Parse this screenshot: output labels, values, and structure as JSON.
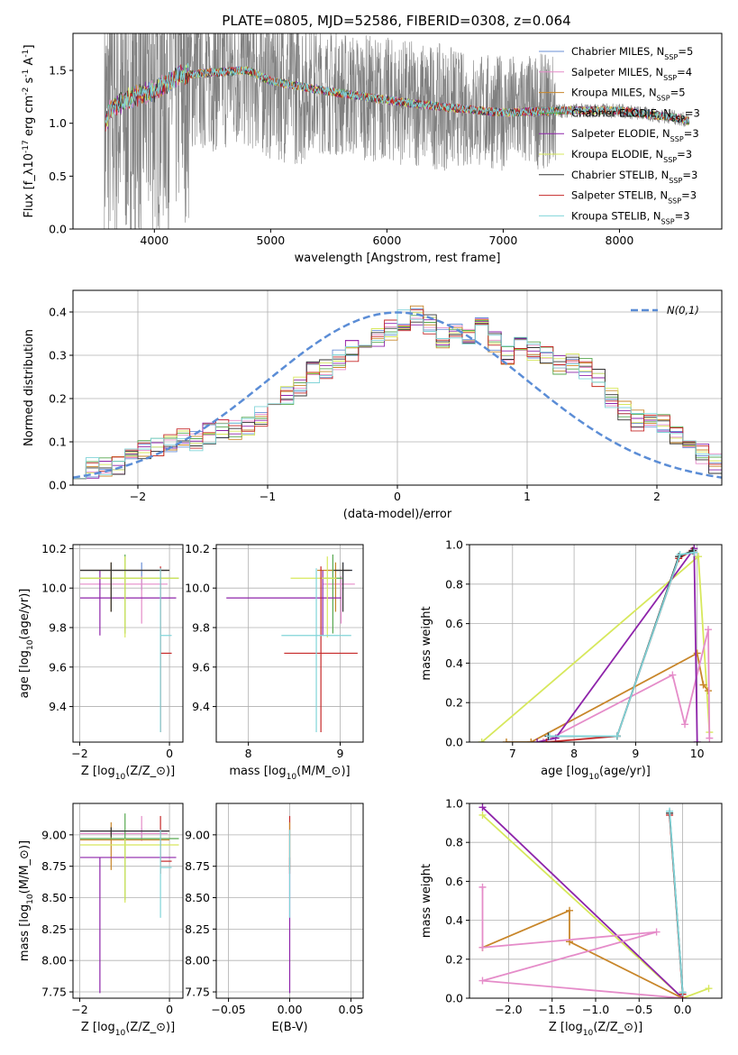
{
  "chart_data": [
    {
      "id": "spectrum",
      "type": "line",
      "title": "PLATE=0805, MJD=52586, FIBERID=0308, z=0.064",
      "xlabel": "wavelength [Angstrom, rest frame]",
      "ylabel": "Flux [f$_\\lambda$10$^{-17}$ erg cm$^{-2}$ s$^{-1}$ A$^{-1}$]",
      "xlim": [
        3300,
        8880
      ],
      "ylim": [
        0,
        1.85
      ],
      "xticks": [
        "4000",
        "5000",
        "6000",
        "7000",
        "8000"
      ],
      "xtick_values": [
        4000,
        5000,
        6000,
        7000,
        8000
      ],
      "yticks": [
        "0.0",
        "0.5",
        "1.0",
        "1.5"
      ],
      "ytick_values": [
        0,
        0.5,
        1.0,
        1.5
      ],
      "data_x_range": [
        3570,
        8600
      ],
      "data_color": "#808080",
      "continuum": [
        [
          3600,
          1.12
        ],
        [
          3800,
          1.25
        ],
        [
          4000,
          1.3
        ],
        [
          4200,
          1.45
        ],
        [
          4500,
          1.48
        ],
        [
          4800,
          1.5
        ],
        [
          5000,
          1.4
        ],
        [
          5500,
          1.3
        ],
        [
          6000,
          1.22
        ],
        [
          6500,
          1.15
        ],
        [
          7000,
          1.1
        ],
        [
          7500,
          1.12
        ],
        [
          8000,
          1.12
        ],
        [
          8500,
          1.05
        ],
        [
          8600,
          1.02
        ]
      ],
      "legend_position": "upper right",
      "series": [
        {
          "name": "Chabrier MILES, N$_{SSP}$=5",
          "color": "#6a8fd6"
        },
        {
          "name": "Salpeter MILES, N$_{SSP}$=4",
          "color": "#e58cc9"
        },
        {
          "name": "Kroupa MILES, N$_{SSP}$=5",
          "color": "#c8862a"
        },
        {
          "name": "Chabrier ELODIE, N$_{SSP}$=3",
          "color": "#56a84f"
        },
        {
          "name": "Salpeter ELODIE, N$_{SSP}$=3",
          "color": "#8e24aa"
        },
        {
          "name": "Kroupa ELODIE, N$_{SSP}$=3",
          "color": "#d7e85c"
        },
        {
          "name": "Chabrier STELIB, N$_{SSP}$=3",
          "color": "#333333"
        },
        {
          "name": "Salpeter STELIB, N$_{SSP}$=3",
          "color": "#c62828"
        },
        {
          "name": "Kroupa STELIB, N$_{SSP}$=3",
          "color": "#80d4d8"
        }
      ]
    },
    {
      "id": "residuals",
      "type": "line",
      "xlabel": "(data-model)/error",
      "ylabel": "Normed distribution",
      "xlim": [
        -2.5,
        2.5
      ],
      "ylim": [
        0,
        0.45
      ],
      "xticks": [
        "−2",
        "−1",
        "0",
        "1",
        "2"
      ],
      "xtick_values": [
        -2,
        -1,
        0,
        1,
        2
      ],
      "yticks": [
        "0.0",
        "0.1",
        "0.2",
        "0.3",
        "0.4"
      ],
      "ytick_values": [
        0,
        0.1,
        0.2,
        0.3,
        0.4
      ],
      "grid": true,
      "bin_edges_range": [
        -2.5,
        2.5
      ],
      "bin_count": 50,
      "histogram_base": [
        0.04,
        0.04,
        0.04,
        0.05,
        0.06,
        0.08,
        0.09,
        0.1,
        0.11,
        0.1,
        0.12,
        0.13,
        0.13,
        0.14,
        0.16,
        0.19,
        0.21,
        0.23,
        0.26,
        0.27,
        0.29,
        0.31,
        0.33,
        0.34,
        0.36,
        0.38,
        0.39,
        0.37,
        0.34,
        0.36,
        0.35,
        0.38,
        0.33,
        0.3,
        0.32,
        0.31,
        0.3,
        0.28,
        0.28,
        0.27,
        0.25,
        0.2,
        0.17,
        0.15,
        0.15,
        0.14,
        0.12,
        0.09,
        0.07,
        0.05
      ],
      "reference_curve": {
        "name": "$\\mathcal{N}(0,1)$",
        "color": "#5b8dd6",
        "dashed": true
      },
      "legend_position": "upper right",
      "series_colors": [
        "#6a8fd6",
        "#e58cc9",
        "#c8862a",
        "#56a84f",
        "#8e24aa",
        "#d7e85c",
        "#333333",
        "#c62828",
        "#80d4d8"
      ]
    },
    {
      "id": "z_age",
      "type": "scatter",
      "xlabel": "Z [log$_{10}$($Z/Z_\\odot$)]",
      "ylabel": "age  [log$_{10}$($age/yr$)]",
      "xlim": [
        -2.15,
        0.3
      ],
      "ylim": [
        9.22,
        10.22
      ],
      "xticks": [
        "−2",
        "0"
      ],
      "xtick_values": [
        -2,
        0
      ],
      "yticks": [
        "9.4",
        "9.6",
        "9.8",
        "10.0",
        "10.2"
      ],
      "ytick_values": [
        9.4,
        9.6,
        9.8,
        10.0,
        10.2
      ],
      "grid": true,
      "points": [
        {
          "color": "#6a8fd6",
          "x": -0.62,
          "xerr": [
            1.37,
            0.58
          ],
          "y": 10.09,
          "yerr": [
            0.1,
            0.04
          ]
        },
        {
          "color": "#e58cc9",
          "x": -0.62,
          "xerr": [
            1.37,
            0.58
          ],
          "y": 10.02,
          "yerr": [
            0.2,
            0.04
          ]
        },
        {
          "color": "#c8862a",
          "x": -1.3,
          "xerr": [
            0.69,
            1.3
          ],
          "y": 10.09,
          "yerr": [
            0.21,
            0.04
          ]
        },
        {
          "color": "#56a84f",
          "x": -0.99,
          "xerr": [
            1.0,
            1.2
          ],
          "y": 10.05,
          "yerr": [
            0.28,
            0.12
          ]
        },
        {
          "color": "#8e24aa",
          "x": -1.55,
          "xerr": [
            0.44,
            1.7
          ],
          "y": 9.95,
          "yerr": [
            0.19,
            0.14
          ]
        },
        {
          "color": "#d7e85c",
          "x": -0.99,
          "xerr": [
            1.0,
            1.2
          ],
          "y": 10.05,
          "yerr": [
            0.3,
            0.11
          ]
        },
        {
          "color": "#333333",
          "x": -1.3,
          "xerr": [
            0.69,
            1.3
          ],
          "y": 10.09,
          "yerr": [
            0.21,
            0.04
          ]
        },
        {
          "color": "#c62828",
          "x": -0.2,
          "xerr": [
            0.0,
            0.25
          ],
          "y": 9.67,
          "yerr": [
            0.4,
            0.44
          ]
        },
        {
          "color": "#80d4d8",
          "x": -0.2,
          "xerr": [
            0.0,
            0.25
          ],
          "y": 9.76,
          "yerr": [
            0.49,
            0.34
          ]
        }
      ]
    },
    {
      "id": "mass_age",
      "type": "scatter",
      "xlabel": "mass [log$_{10}$($M/M_\\odot$)]",
      "ylabel": "",
      "xlim": [
        7.65,
        9.25
      ],
      "ylim": [
        9.22,
        10.22
      ],
      "xticks": [
        "8",
        "9"
      ],
      "xtick_values": [
        8,
        9
      ],
      "yticks": [
        "9.4",
        "9.6",
        "9.8",
        "10.0",
        "10.2"
      ],
      "ytick_values": [
        9.4,
        9.6,
        9.8,
        10.0,
        10.2
      ],
      "grid": true,
      "points": [
        {
          "color": "#6a8fd6",
          "x": 9.03,
          "xerr": [
            0.18,
            0.1
          ],
          "y": 10.09,
          "yerr": [
            0.1,
            0.04
          ]
        },
        {
          "color": "#e58cc9",
          "x": 9.01,
          "xerr": [
            0.2,
            0.15
          ],
          "y": 10.02,
          "yerr": [
            0.2,
            0.04
          ]
        },
        {
          "color": "#c8862a",
          "x": 8.95,
          "xerr": [
            0.2,
            0.15
          ],
          "y": 10.09,
          "yerr": [
            0.21,
            0.04
          ]
        },
        {
          "color": "#56a84f",
          "x": 8.92,
          "xerr": [
            0.1,
            0.1
          ],
          "y": 10.05,
          "yerr": [
            0.28,
            0.12
          ]
        },
        {
          "color": "#8e24aa",
          "x": 8.81,
          "xerr": [
            1.05,
            0.2
          ],
          "y": 9.95,
          "yerr": [
            0.19,
            0.14
          ]
        },
        {
          "color": "#d7e85c",
          "x": 8.86,
          "xerr": [
            0.4,
            0.1
          ],
          "y": 10.05,
          "yerr": [
            0.3,
            0.11
          ]
        },
        {
          "color": "#333333",
          "x": 9.03,
          "xerr": [
            0.1,
            0.1
          ],
          "y": 10.09,
          "yerr": [
            0.21,
            0.04
          ]
        },
        {
          "color": "#c62828",
          "x": 8.79,
          "xerr": [
            0.4,
            0.4
          ],
          "y": 9.67,
          "yerr": [
            0.4,
            0.44
          ]
        },
        {
          "color": "#80d4d8",
          "x": 8.74,
          "xerr": [
            0.38,
            0.38
          ],
          "y": 9.76,
          "yerr": [
            0.49,
            0.34
          ]
        }
      ]
    },
    {
      "id": "age_weight",
      "type": "line",
      "xlabel": "age  [log$_{10}$($age/yr$)]",
      "ylabel": "mass weight",
      "xlim": [
        6.3,
        10.4
      ],
      "ylim": [
        0,
        1.0
      ],
      "xticks": [
        "7",
        "8",
        "9",
        "10"
      ],
      "xtick_values": [
        7,
        8,
        9,
        10
      ],
      "yticks": [
        "0.0",
        "0.2",
        "0.4",
        "0.6",
        "0.8",
        "1.0"
      ],
      "ytick_values": [
        0,
        0.2,
        0.4,
        0.6,
        0.8,
        1.0
      ],
      "grid": true,
      "series": [
        {
          "color": "#d7e85c",
          "x": [
            6.5,
            10.02,
            10.2
          ],
          "y": [
            0.0,
            0.94,
            0.05
          ]
        },
        {
          "color": "#c8862a",
          "x": [
            6.9,
            7.3,
            10.0,
            10.1,
            10.18
          ],
          "y": [
            0.0,
            0.0,
            0.45,
            0.29,
            0.26
          ]
        },
        {
          "color": "#e58cc9",
          "x": [
            7.5,
            9.6,
            9.8,
            10.18,
            10.2
          ],
          "y": [
            0.0,
            0.34,
            0.09,
            0.57,
            0.02
          ]
        },
        {
          "color": "#8e24aa",
          "x": [
            7.4,
            7.7,
            9.95,
            10.0
          ],
          "y": [
            0.0,
            0.02,
            0.98,
            0.0
          ]
        },
        {
          "color": "#c62828",
          "x": [
            7.55,
            8.7,
            9.7,
            9.92
          ],
          "y": [
            0.0,
            0.03,
            0.93,
            0.97
          ]
        },
        {
          "color": "#333333",
          "x": [
            7.58,
            8.7,
            9.7,
            9.93
          ],
          "y": [
            0.03,
            0.03,
            0.94,
            0.97
          ]
        },
        {
          "color": "#80d4d8",
          "x": [
            7.6,
            8.7,
            9.72,
            9.95
          ],
          "y": [
            0.03,
            0.03,
            0.95,
            0.96
          ]
        }
      ]
    },
    {
      "id": "z_mass",
      "type": "scatter",
      "xlabel": "Z [log$_{10}$($Z/Z_\\odot$)]",
      "ylabel": "mass [log$_{10}$($M/M_\\odot$)]",
      "xlim": [
        -2.15,
        0.3
      ],
      "ylim": [
        7.7,
        9.25
      ],
      "xticks": [
        "−2",
        "0"
      ],
      "xtick_values": [
        -2,
        0
      ],
      "yticks": [
        "7.75",
        "8.00",
        "8.25",
        "8.50",
        "8.75",
        "9.00"
      ],
      "ytick_values": [
        7.75,
        8.0,
        8.25,
        8.5,
        8.75,
        9.0
      ],
      "grid": true,
      "points": [
        {
          "color": "#6a8fd6",
          "x": -0.62,
          "xerr": [
            1.37,
            0.58
          ],
          "y": 9.03,
          "yerr": [
            0.05,
            0.02
          ]
        },
        {
          "color": "#e58cc9",
          "x": -0.62,
          "xerr": [
            1.37,
            0.58
          ],
          "y": 9.01,
          "yerr": [
            0.06,
            0.14
          ]
        },
        {
          "color": "#c8862a",
          "x": -1.3,
          "xerr": [
            0.69,
            1.3
          ],
          "y": 8.96,
          "yerr": [
            0.24,
            0.14
          ]
        },
        {
          "color": "#56a84f",
          "x": -0.99,
          "xerr": [
            1.0,
            1.2
          ],
          "y": 8.97,
          "yerr": [
            0.49,
            0.2
          ]
        },
        {
          "color": "#8e24aa",
          "x": -1.55,
          "xerr": [
            0.44,
            1.7
          ],
          "y": 8.82,
          "yerr": [
            1.08,
            0.0
          ]
        },
        {
          "color": "#d7e85c",
          "x": -0.99,
          "xerr": [
            1.0,
            1.2
          ],
          "y": 8.92,
          "yerr": [
            0.46,
            0.05
          ]
        },
        {
          "color": "#333333",
          "x": -1.3,
          "xerr": [
            0.69,
            1.3
          ],
          "y": 9.03,
          "yerr": [
            0.05,
            0.03
          ]
        },
        {
          "color": "#c62828",
          "x": -0.2,
          "xerr": [
            0.0,
            0.25
          ],
          "y": 8.79,
          "yerr": [
            0.1,
            0.36
          ]
        },
        {
          "color": "#80d4d8",
          "x": -0.2,
          "xerr": [
            0.0,
            0.25
          ],
          "y": 8.74,
          "yerr": [
            0.4,
            0.3
          ]
        }
      ]
    },
    {
      "id": "ebv_mass",
      "type": "scatter",
      "xlabel": "E(B-V)",
      "ylabel": "",
      "xlim": [
        -0.06,
        0.06
      ],
      "ylim": [
        7.7,
        9.25
      ],
      "xticks": [
        "−0.05",
        "0.00",
        "0.05"
      ],
      "xtick_values": [
        -0.05,
        0,
        0.05
      ],
      "yticks": [
        "7.75",
        "8.00",
        "8.25",
        "8.50",
        "8.75",
        "9.00"
      ],
      "ytick_values": [
        7.75,
        8.0,
        8.25,
        8.5,
        8.75,
        9.0
      ],
      "grid": true,
      "points": [
        {
          "color": "#8e24aa",
          "x": 0,
          "y": 8.82,
          "yerr": [
            1.08,
            0.0
          ]
        },
        {
          "color": "#c62828",
          "x": 0,
          "y": 8.79,
          "yerr": [
            0.1,
            0.36
          ]
        },
        {
          "color": "#c8862a",
          "x": 0,
          "y": 8.96,
          "yerr": [
            0.24,
            0.14
          ]
        },
        {
          "color": "#80d4d8",
          "x": 0,
          "y": 8.74,
          "yerr": [
            0.4,
            0.3
          ]
        }
      ]
    },
    {
      "id": "z_weight",
      "type": "line",
      "xlabel": "Z [log$_{10}$($Z/Z_\\odot$)]",
      "ylabel": "mass weight",
      "xlim": [
        -2.45,
        0.45
      ],
      "ylim": [
        0,
        1.0
      ],
      "xticks": [
        "−2.0",
        "−1.5",
        "−1.0",
        "−0.5",
        "0.0"
      ],
      "xtick_values": [
        -2.0,
        -1.5,
        -1.0,
        -0.5,
        0.0
      ],
      "yticks": [
        "0.0",
        "0.2",
        "0.4",
        "0.6",
        "0.8",
        "1.0"
      ],
      "ytick_values": [
        0,
        0.2,
        0.4,
        0.6,
        0.8,
        1.0
      ],
      "grid": true,
      "series": [
        {
          "color": "#d7e85c",
          "x": [
            -2.3,
            0.0,
            0.3
          ],
          "y": [
            0.94,
            0.0,
            0.05
          ]
        },
        {
          "color": "#8e24aa",
          "x": [
            -2.3,
            0.0
          ],
          "y": [
            0.98,
            0.0
          ]
        },
        {
          "color": "#c8862a",
          "x": [
            -2.3,
            -1.3,
            -1.3,
            0.0
          ],
          "y": [
            0.26,
            0.45,
            0.29,
            0.0
          ]
        },
        {
          "color": "#e58cc9",
          "x": [
            -2.3,
            -2.3,
            -0.3,
            -2.3,
            0.0
          ],
          "y": [
            0.57,
            0.26,
            0.34,
            0.09,
            0.0
          ]
        },
        {
          "color": "#c62828",
          "x": [
            -0.15,
            0.0
          ],
          "y": [
            0.94,
            0.02
          ]
        },
        {
          "color": "#333333",
          "x": [
            -0.15,
            0.0
          ],
          "y": [
            0.95,
            0.03
          ]
        },
        {
          "color": "#80d4d8",
          "x": [
            -0.15,
            0.0
          ],
          "y": [
            0.96,
            0.03
          ]
        }
      ]
    }
  ]
}
